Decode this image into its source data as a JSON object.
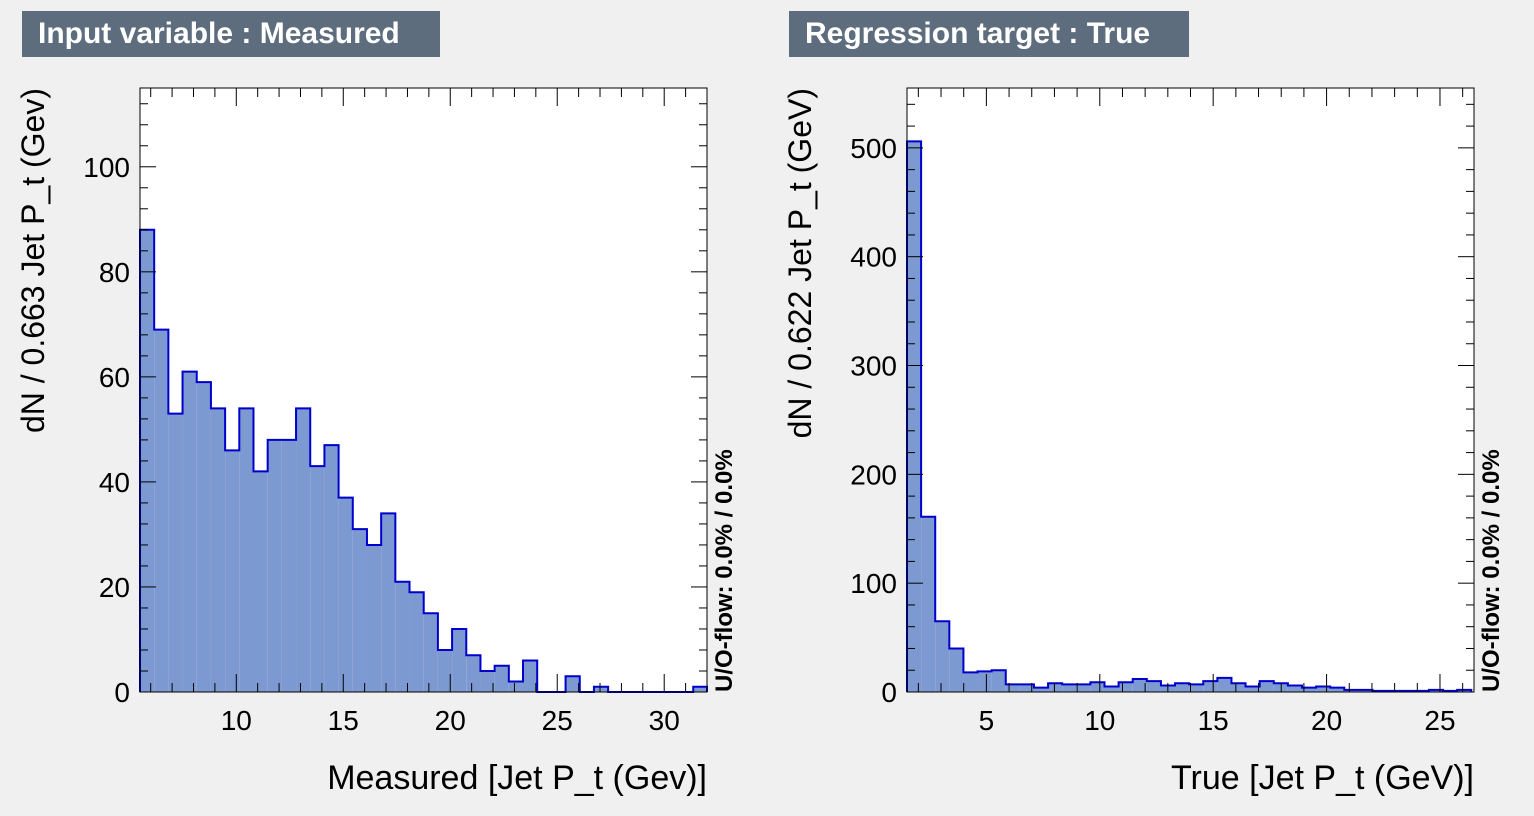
{
  "chart_data": [
    {
      "type": "bar",
      "title": "Input variable : Measured",
      "xlabel": "Measured  [Jet P_t (Gev)]",
      "ylabel": "dN / 0.663 Jet P_t (Gev)",
      "side_label": "U/O-flow: 0.0% / 0.0%",
      "fill_color": "#7d99d1",
      "line_color": "#0000cc",
      "xlim": [
        5.5,
        32.0
      ],
      "ylim": [
        0,
        115
      ],
      "xticks": [
        10,
        15,
        20,
        25,
        30
      ],
      "yticks": [
        0,
        20,
        40,
        60,
        80,
        100
      ],
      "bin_width": 0.663,
      "values": [
        88,
        69,
        53,
        61,
        59,
        54,
        46,
        54,
        42,
        48,
        48,
        54,
        43,
        47,
        37,
        31,
        28,
        34,
        21,
        19,
        15,
        8,
        12,
        7,
        4,
        5,
        2,
        6,
        0,
        0,
        3,
        0,
        1,
        0,
        0,
        0,
        0,
        0,
        0,
        1
      ]
    },
    {
      "type": "bar",
      "title": "Regression target : True",
      "xlabel": "True  [Jet P_t (GeV)]",
      "ylabel": "dN / 0.622 Jet P_t (GeV)",
      "side_label": "U/O-flow: 0.0% / 0.0%",
      "fill_color": "#7d99d1",
      "line_color": "#0000cc",
      "xlim": [
        1.5,
        26.5
      ],
      "ylim": [
        0,
        555
      ],
      "xticks": [
        5,
        10,
        15,
        20,
        25
      ],
      "yticks": [
        0,
        100,
        200,
        300,
        400,
        500
      ],
      "bin_width": 0.622,
      "values": [
        506,
        161,
        65,
        40,
        18,
        19,
        20,
        7,
        7,
        4,
        8,
        7,
        7,
        9,
        5,
        9,
        12,
        10,
        6,
        8,
        7,
        10,
        13,
        8,
        5,
        10,
        8,
        6,
        4,
        5,
        4,
        2,
        2,
        1,
        1,
        1,
        1,
        2,
        1,
        2
      ]
    }
  ]
}
